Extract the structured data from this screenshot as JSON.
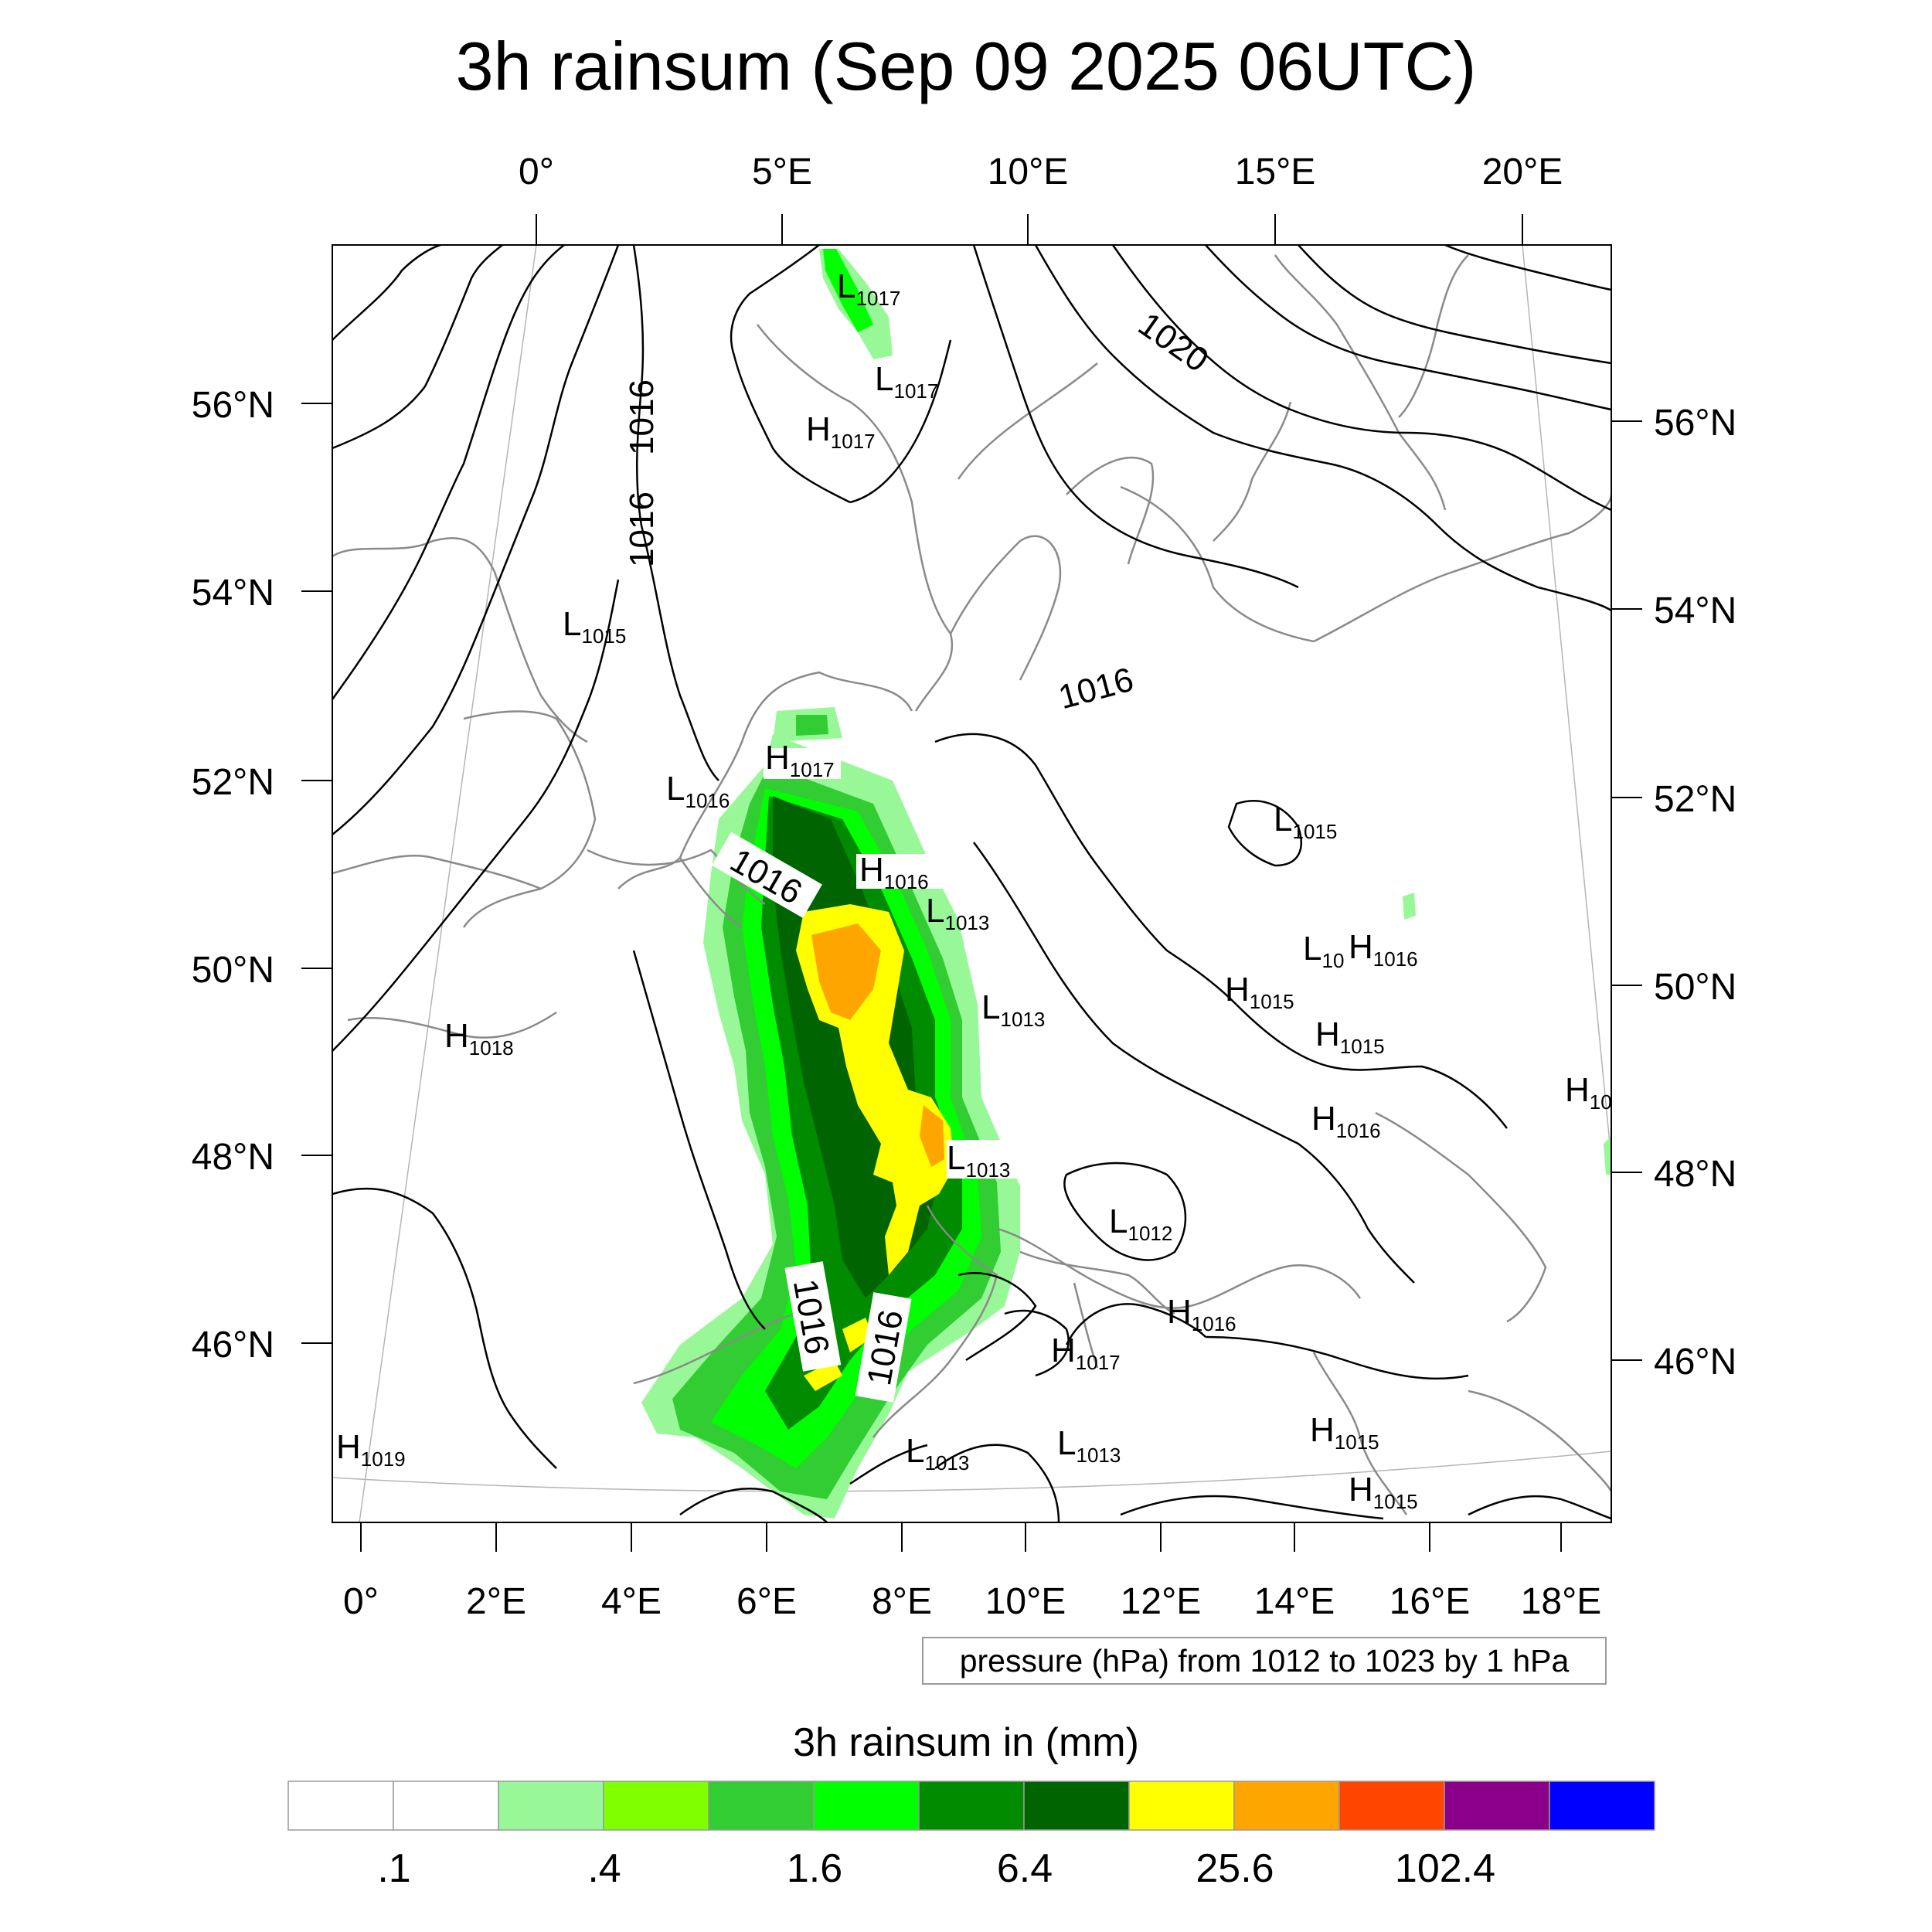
{
  "title": "3h rainsum (Sep 09 2025 06UTC)",
  "pressure_note": "pressure (hPa) from 1012 to 1023 by 1 hPa",
  "colorbar": {
    "title": "3h rainsum in (mm)",
    "colors": [
      "#ffffff",
      "#ffffff",
      "#98f898",
      "#80ff00",
      "#32cd32",
      "#00ff00",
      "#008b00",
      "#006400",
      "#ffff00",
      "#ffa500",
      "#ff4500",
      "#8b008b",
      "#0000ff"
    ],
    "labels": [
      ".1",
      ".4",
      "1.6",
      "6.4",
      "25.6",
      "102.4"
    ]
  },
  "axes": {
    "top": [
      "0°",
      "5°E",
      "10°E",
      "15°E",
      "20°E"
    ],
    "bottom": [
      "0°",
      "2°E",
      "4°E",
      "6°E",
      "8°E",
      "10°E",
      "12°E",
      "14°E",
      "16°E",
      "18°E"
    ],
    "left": [
      "56°N",
      "54°N",
      "52°N",
      "50°N",
      "48°N",
      "46°N"
    ],
    "right": [
      "56°N",
      "54°N",
      "52°N",
      "50°N",
      "48°N",
      "46°N"
    ]
  },
  "contour_labels": [
    "1020",
    "1016",
    "1016",
    "1016",
    "1016",
    "1016",
    "1016"
  ],
  "pressure_centers": [
    {
      "type": "L",
      "value": "1017"
    },
    {
      "type": "L",
      "value": "1017"
    },
    {
      "type": "H",
      "value": "1017"
    },
    {
      "type": "L",
      "value": "1015"
    },
    {
      "type": "H",
      "value": "1017"
    },
    {
      "type": "L",
      "value": "1016"
    },
    {
      "type": "H",
      "value": "1016"
    },
    {
      "type": "L",
      "value": "1013"
    },
    {
      "type": "L",
      "value": "1015"
    },
    {
      "type": "L",
      "value": "10"
    },
    {
      "type": "H",
      "value": "1016"
    },
    {
      "type": "H",
      "value": "1015"
    },
    {
      "type": "H",
      "value": "1015"
    },
    {
      "type": "L",
      "value": "1013"
    },
    {
      "type": "H",
      "value": "1018"
    },
    {
      "type": "H",
      "value": "10"
    },
    {
      "type": "H",
      "value": "1016"
    },
    {
      "type": "L",
      "value": "1013"
    },
    {
      "type": "L",
      "value": "1012"
    },
    {
      "type": "H",
      "value": "1016"
    },
    {
      "type": "H",
      "value": "1017"
    },
    {
      "type": "H",
      "value": "1019"
    },
    {
      "type": "L",
      "value": "1013"
    },
    {
      "type": "L",
      "value": "1013"
    },
    {
      "type": "H",
      "value": "1015"
    },
    {
      "type": "H",
      "value": "1015"
    }
  ]
}
